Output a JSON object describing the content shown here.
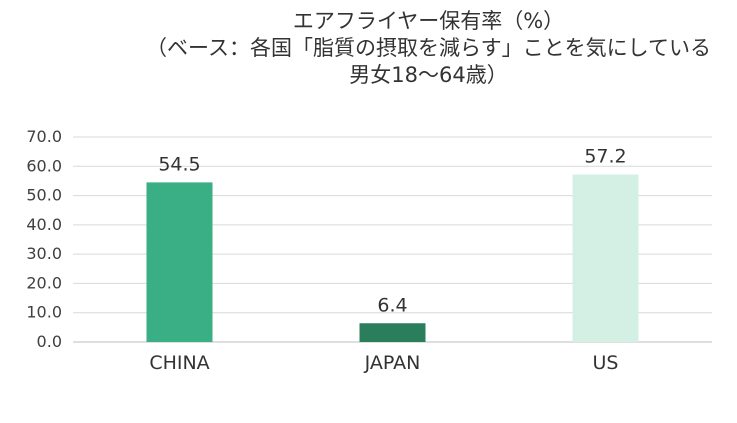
{
  "chart_data": {
    "type": "bar",
    "title_lines": [
      "エアフライヤー保有率（%）",
      "（ベース：各国「脂質の摂取を減らす」ことを気にしている",
      "男女18〜64歳）"
    ],
    "categories": [
      "CHINA",
      "JAPAN",
      "US"
    ],
    "values": [
      54.5,
      6.4,
      57.2
    ],
    "value_labels": [
      "54.5",
      "6.4",
      "57.2"
    ],
    "colors": [
      "#3aaf85",
      "#2a7e5c",
      "#d4f0e4"
    ],
    "ylim": [
      0,
      70
    ],
    "yticks": [
      "0.0",
      "10.0",
      "20.0",
      "30.0",
      "40.0",
      "50.0",
      "60.0",
      "70.0"
    ],
    "grid": true,
    "legend": "none"
  }
}
